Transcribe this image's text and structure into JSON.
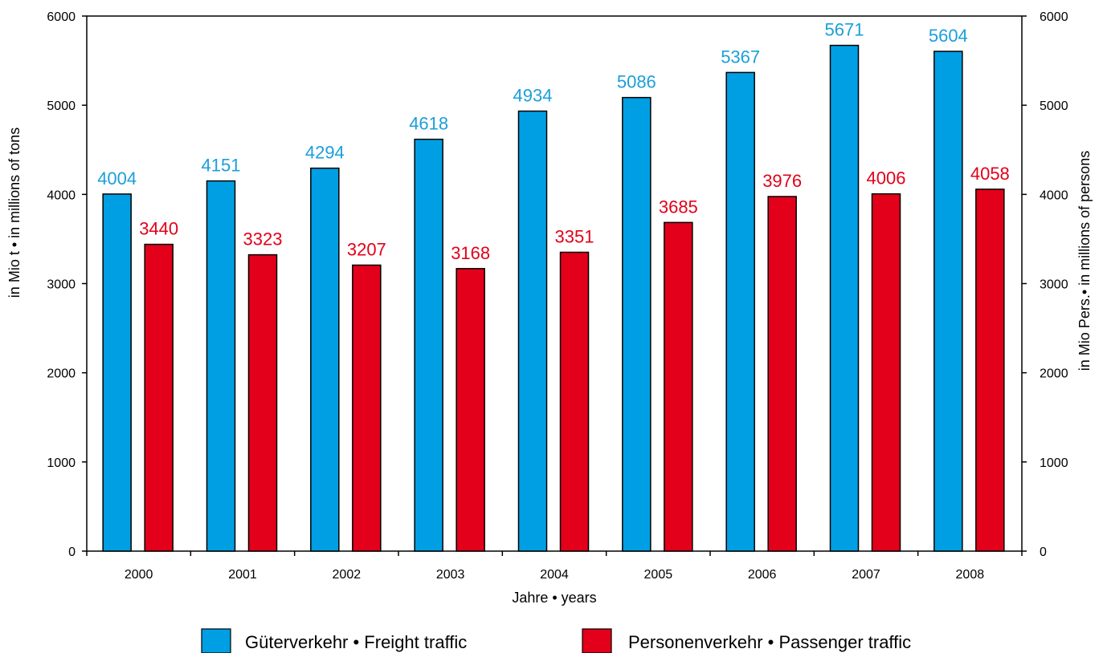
{
  "chart_data": {
    "type": "bar",
    "categories": [
      "2000",
      "2001",
      "2002",
      "2003",
      "2004",
      "2005",
      "2006",
      "2007",
      "2008"
    ],
    "series": [
      {
        "name": "Güterverkehr • Freight traffic",
        "color": "#009FE3",
        "label_color": "#1B9FDA",
        "values": [
          4004,
          4151,
          4294,
          4618,
          4934,
          5086,
          5367,
          5671,
          5604
        ],
        "axis": "left"
      },
      {
        "name": "Personenverkehr • Passenger traffic",
        "color": "#E2001A",
        "label_color": "#E2001A",
        "values": [
          3440,
          3323,
          3207,
          3168,
          3351,
          3685,
          3976,
          4006,
          4058
        ],
        "axis": "right"
      }
    ],
    "title": "",
    "xlabel": "Jahre • years",
    "ylabel_left": "in Mio t • in millions of tons",
    "ylabel_right": "in Mio Pers.• in millions of persons",
    "ylim": [
      0,
      6000
    ],
    "yticks": [
      0,
      1000,
      2000,
      3000,
      4000,
      5000,
      6000
    ],
    "grid": false,
    "legend_position": "bottom"
  }
}
